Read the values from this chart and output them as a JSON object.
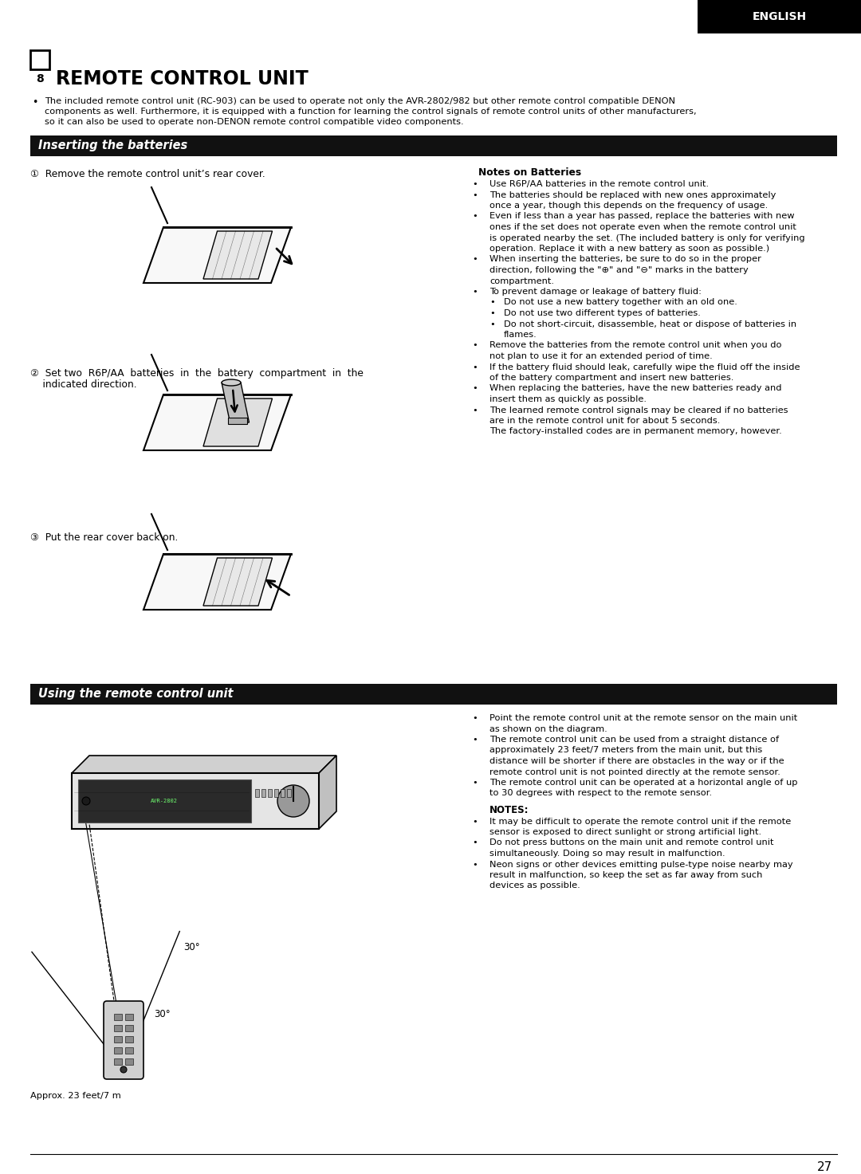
{
  "page_bg": "#ffffff",
  "section_bar_bg": "#111111",
  "title": "REMOTE CONTROL UNIT",
  "title_number": "8",
  "english_tab": "ENGLISH",
  "intro_line1": "The included remote control unit (RC-903) can be used to operate not only the AVR-2802/982 but other remote control compatible DENON",
  "intro_line2": "components as well. Furthermore, it is equipped with a function for learning the control signals of remote control units of other manufacturers,",
  "intro_line3": "so it can also be used to operate non-DENON remote control compatible video components.",
  "section1_title": "Inserting the batteries",
  "step1": "①  Remove the remote control unit’s rear cover.",
  "step2_line1": "②  Set two  R6P/AA  batteries  in  the  battery  compartment  in  the",
  "step2_line2": "    indicated direction.",
  "step3": "③  Put the rear cover back on.",
  "notes_title": "Notes on Batteries",
  "note1": "Use R6P/AA batteries in the remote control unit.",
  "note2a": "The batteries should be replaced with new ones approximately",
  "note2b": "once a year, though this depends on the frequency of usage.",
  "note3a": "Even if less than a year has passed, replace the batteries with new",
  "note3b": "ones if the set does not operate even when the remote control unit",
  "note3c": "is operated nearby the set. (The included battery is only for verifying",
  "note3d": "operation. Replace it with a new battery as soon as possible.)",
  "note4a": "When inserting the batteries, be sure to do so in the proper",
  "note4b": "direction, following the \"⊕\" and \"⊖\" marks in the battery",
  "note4c": "compartment.",
  "note5": "To prevent damage or leakage of battery fluid:",
  "sub1": "Do not use a new battery together with an old one.",
  "sub2": "Do not use two different types of batteries.",
  "sub3a": "Do not short-circuit, disassemble, heat or dispose of batteries in",
  "sub3b": "flames.",
  "note6a": "Remove the batteries from the remote control unit when you do",
  "note6b": "not plan to use it for an extended period of time.",
  "note7a": "If the battery fluid should leak, carefully wipe the fluid off the inside",
  "note7b": "of the battery compartment and insert new batteries.",
  "note8a": "When replacing the batteries, have the new batteries ready and",
  "note8b": "insert them as quickly as possible.",
  "note9a": "The learned remote control signals may be cleared if no batteries",
  "note9b": "are in the remote control unit for about 5 seconds.",
  "note9c": "The factory-installed codes are in permanent memory, however.",
  "section2_title": "Using the remote control unit",
  "u1a": "Point the remote control unit at the remote sensor on the main unit",
  "u1b": "as shown on the diagram.",
  "u2a": "The remote control unit can be used from a straight distance of",
  "u2b": "approximately 23 feet/7 meters from the main unit, but this",
  "u2c": "distance will be shorter if there are obstacles in the way or if the",
  "u2d": "remote control unit is not pointed directly at the remote sensor.",
  "u3a": "The remote control unit can be operated at a horizontal angle of up",
  "u3b": "to 30 degrees with respect to the remote sensor.",
  "notes2_title": "NOTES:",
  "n2_1a": "It may be difficult to operate the remote control unit if the remote",
  "n2_1b": "sensor is exposed to direct sunlight or strong artificial light.",
  "n2_2a": "Do not press buttons on the main unit and remote control unit",
  "n2_2b": "simultaneously. Doing so may result in malfunction.",
  "n2_3a": "Neon signs or other devices emitting pulse-type noise nearby may",
  "n2_3b": "result in malfunction, so keep the set as far away from such",
  "n2_3c": "devices as possible.",
  "approx_text": "Approx. 23 feet/7 m",
  "page_number": "27",
  "ml": 38,
  "mr": 1050,
  "c2x": 560,
  "notes_c2x": 600
}
